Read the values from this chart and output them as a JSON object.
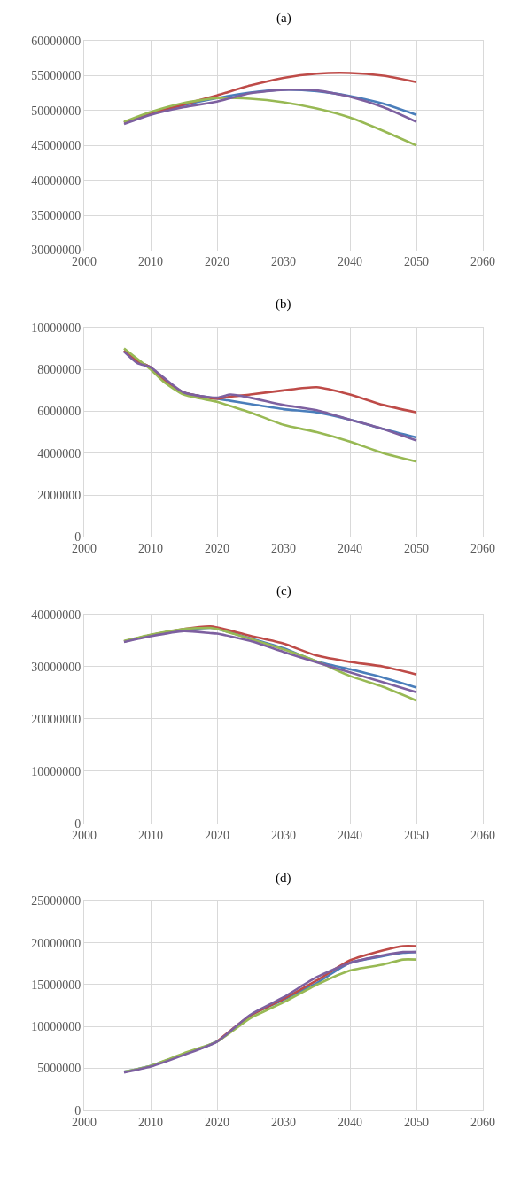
{
  "chart_data": [
    {
      "type": "line",
      "title": "(a)",
      "x": [
        2006,
        2010,
        2015,
        2020,
        2025,
        2030,
        2035,
        2040,
        2045,
        2050
      ],
      "xlim": [
        2000,
        2060
      ],
      "xticks": [
        2000,
        2010,
        2020,
        2030,
        2040,
        2050,
        2060
      ],
      "ylim": [
        30000000,
        60000000
      ],
      "yticks": [
        30000000,
        35000000,
        40000000,
        45000000,
        50000000,
        55000000,
        60000000
      ],
      "grid": true,
      "series": [
        {
          "color": "#4a7ebb",
          "values": [
            48300000,
            49600000,
            50800000,
            51800000,
            52600000,
            53000000,
            52800000,
            52100000,
            51000000,
            49400000
          ]
        },
        {
          "color": "#be4b48",
          "values": [
            48300000,
            49600000,
            50900000,
            52200000,
            53600000,
            54700000,
            55300000,
            55400000,
            55000000,
            54100000
          ]
        },
        {
          "color": "#98b954",
          "values": [
            48400000,
            49800000,
            51100000,
            51800000,
            51700000,
            51200000,
            50300000,
            49000000,
            47100000,
            45000000
          ]
        },
        {
          "color": "#7d60a0",
          "values": [
            48100000,
            49400000,
            50500000,
            51300000,
            52500000,
            53000000,
            52900000,
            52000000,
            50500000,
            48400000
          ]
        }
      ]
    },
    {
      "type": "line",
      "title": "(b)",
      "x": [
        2006,
        2008,
        2010,
        2012,
        2015,
        2020,
        2022,
        2025,
        2030,
        2035,
        2040,
        2045,
        2050
      ],
      "xlim": [
        2000,
        2060
      ],
      "xticks": [
        2000,
        2010,
        2020,
        2030,
        2040,
        2050,
        2060
      ],
      "ylim": [
        0,
        10000000
      ],
      "yticks": [
        0,
        2000000,
        4000000,
        6000000,
        8000000,
        10000000
      ],
      "grid": true,
      "series": [
        {
          "color": "#4a7ebb",
          "values": [
            8900000,
            8400000,
            8100000,
            7500000,
            6900000,
            6600000,
            6500000,
            6350000,
            6100000,
            5950000,
            5600000,
            5150000,
            4750000
          ]
        },
        {
          "color": "#be4b48",
          "values": [
            8900000,
            8400000,
            8100000,
            7500000,
            6900000,
            6600000,
            6700000,
            6800000,
            7000000,
            7150000,
            6800000,
            6300000,
            5950000
          ]
        },
        {
          "color": "#98b954",
          "values": [
            9000000,
            8500000,
            8000000,
            7400000,
            6800000,
            6450000,
            6250000,
            5950000,
            5350000,
            5000000,
            4550000,
            4000000,
            3600000
          ]
        },
        {
          "color": "#7d60a0",
          "values": [
            8850000,
            8300000,
            8100000,
            7600000,
            6900000,
            6650000,
            6800000,
            6650000,
            6300000,
            6050000,
            5600000,
            5150000,
            4600000
          ]
        }
      ]
    },
    {
      "type": "line",
      "title": "(c)",
      "x": [
        2006,
        2010,
        2015,
        2019,
        2020,
        2025,
        2030,
        2035,
        2040,
        2045,
        2050
      ],
      "xlim": [
        2000,
        2060
      ],
      "xticks": [
        2000,
        2010,
        2020,
        2030,
        2040,
        2050,
        2060
      ],
      "ylim": [
        0,
        40000000
      ],
      "yticks": [
        0,
        10000000,
        20000000,
        30000000,
        40000000
      ],
      "grid": true,
      "series": [
        {
          "color": "#4a7ebb",
          "values": [
            34800000,
            36000000,
            37100000,
            37400000,
            37200000,
            35400000,
            33500000,
            31000000,
            29500000,
            27900000,
            26000000
          ]
        },
        {
          "color": "#be4b48",
          "values": [
            34800000,
            36000000,
            37200000,
            37700000,
            37500000,
            35900000,
            34400000,
            32100000,
            30900000,
            30000000,
            28500000
          ]
        },
        {
          "color": "#98b954",
          "values": [
            34900000,
            36100000,
            37200000,
            37400000,
            37200000,
            35300000,
            33300000,
            31000000,
            28200000,
            26100000,
            23500000
          ]
        },
        {
          "color": "#7d60a0",
          "values": [
            34700000,
            35800000,
            36800000,
            36400000,
            36300000,
            34900000,
            32800000,
            30800000,
            28900000,
            27000000,
            25100000
          ]
        }
      ]
    },
    {
      "type": "line",
      "title": "(d)",
      "x": [
        2006,
        2010,
        2015,
        2020,
        2025,
        2030,
        2035,
        2040,
        2045,
        2048,
        2050
      ],
      "xlim": [
        2000,
        2060
      ],
      "xticks": [
        2000,
        2010,
        2020,
        2030,
        2040,
        2050,
        2060
      ],
      "ylim": [
        0,
        25000000
      ],
      "yticks": [
        0,
        5000000,
        10000000,
        15000000,
        20000000,
        25000000
      ],
      "grid": true,
      "series": [
        {
          "color": "#4a7ebb",
          "values": [
            4600000,
            5300000,
            6700000,
            8200000,
            11300000,
            13200000,
            15200000,
            17600000,
            18400000,
            18800000,
            18900000
          ]
        },
        {
          "color": "#be4b48",
          "values": [
            null,
            null,
            null,
            8200000,
            11300000,
            13300000,
            15500000,
            17900000,
            19100000,
            19600000,
            19600000
          ]
        },
        {
          "color": "#98b954",
          "values": [
            4600000,
            5300000,
            6800000,
            8200000,
            11000000,
            12900000,
            15000000,
            16700000,
            17400000,
            18000000,
            18000000
          ]
        },
        {
          "color": "#7d60a0",
          "values": [
            4500000,
            5200000,
            6600000,
            8200000,
            11400000,
            13500000,
            15900000,
            17600000,
            18500000,
            18900000,
            18900000
          ]
        }
      ]
    }
  ]
}
